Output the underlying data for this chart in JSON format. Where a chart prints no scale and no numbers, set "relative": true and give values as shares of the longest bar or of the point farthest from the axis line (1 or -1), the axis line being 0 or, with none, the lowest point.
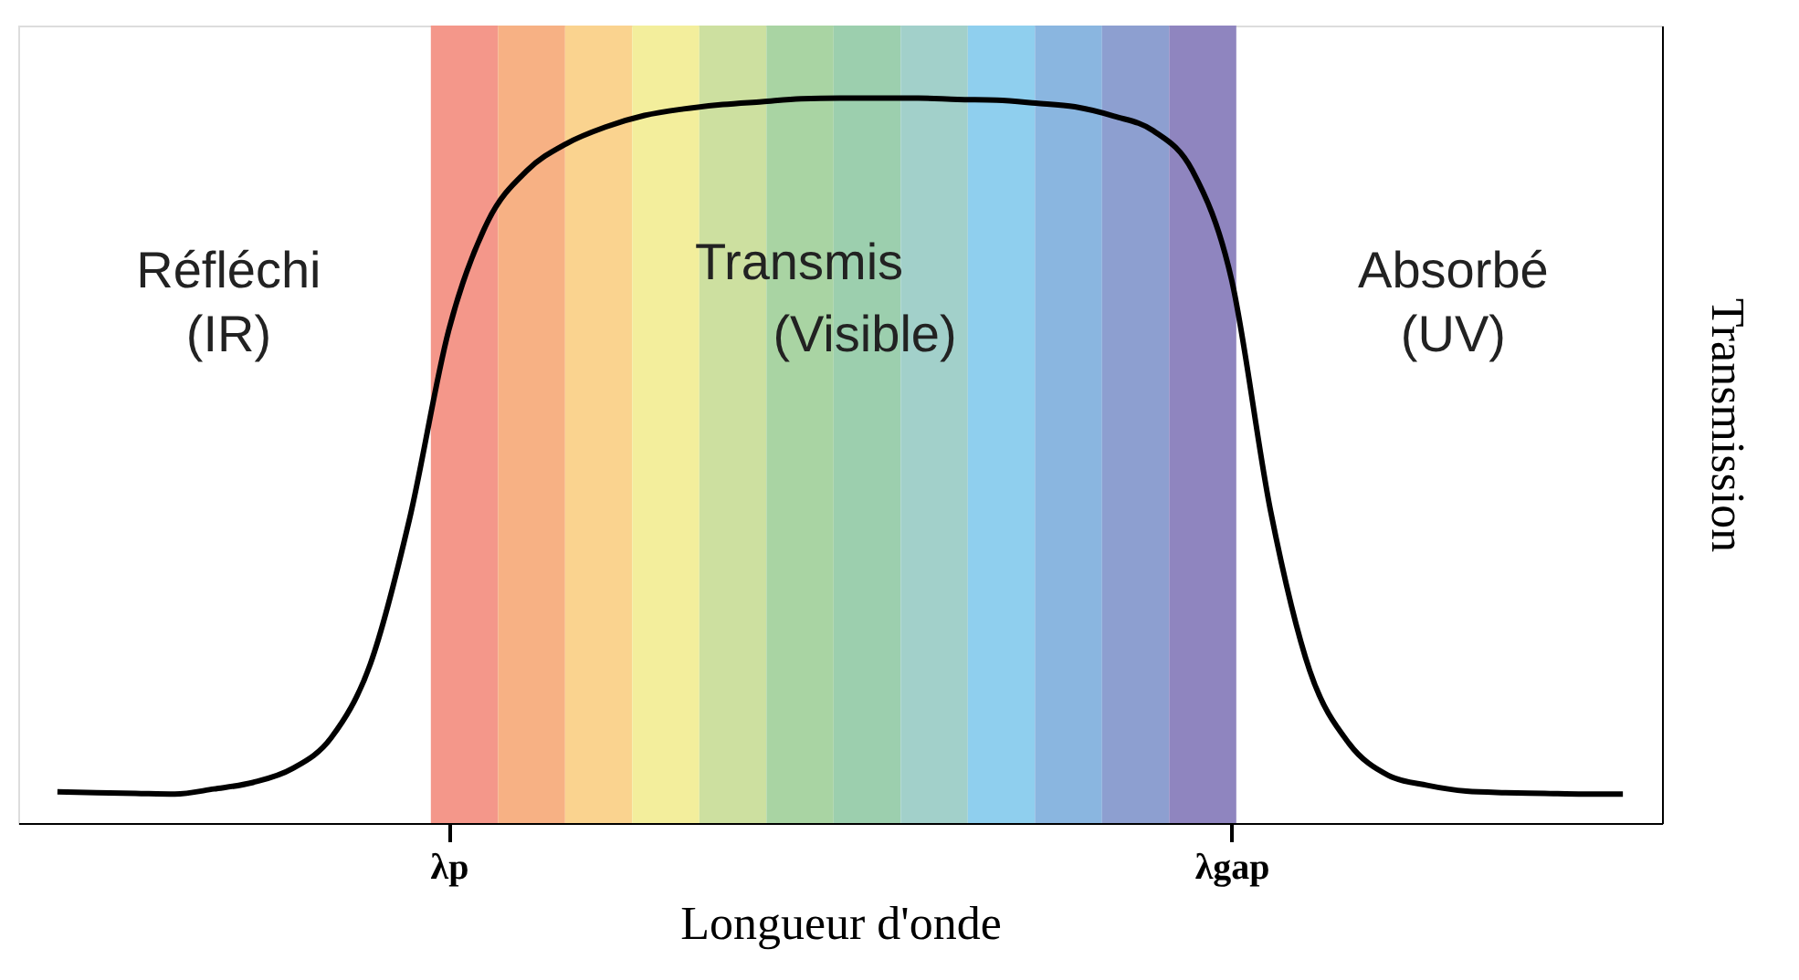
{
  "chart_data": {
    "type": "line",
    "relative": true,
    "xlabel": "Longueur d'onde",
    "ylabel": "Transmission",
    "categories": [
      null,
      null,
      null,
      null,
      null,
      null,
      null,
      null,
      null,
      null,
      "λp",
      null,
      null,
      null,
      null,
      null,
      null,
      null,
      null,
      null,
      null,
      null,
      null,
      null,
      null,
      null,
      null,
      null,
      null,
      null,
      "λgap",
      null,
      null,
      null,
      null,
      null,
      null,
      null,
      null,
      null,
      null
    ],
    "grid": false,
    "marker": "none",
    "line_style": "solid",
    "series": [
      {
        "color": "#000000",
        "values": [
          0.043,
          0.042,
          0.041,
          0.04,
          0.047,
          0.056,
          0.075,
          0.118,
          0.22,
          0.42,
          0.68,
          0.83,
          0.9,
          0.937,
          0.96,
          0.976,
          0.985,
          0.991,
          0.995,
          0.999,
          1.0,
          1.0,
          1.0,
          0.998,
          0.997,
          0.993,
          0.988,
          0.975,
          0.955,
          0.9,
          0.75,
          0.43,
          0.21,
          0.11,
          0.066,
          0.052,
          0.044,
          0.042,
          0.041,
          0.04,
          0.04
        ]
      }
    ],
    "annotations": [
      "Réfléchi",
      "(IR)",
      "Transmis",
      "(Visible)",
      "Absorbé",
      "(UV)"
    ]
  }
}
